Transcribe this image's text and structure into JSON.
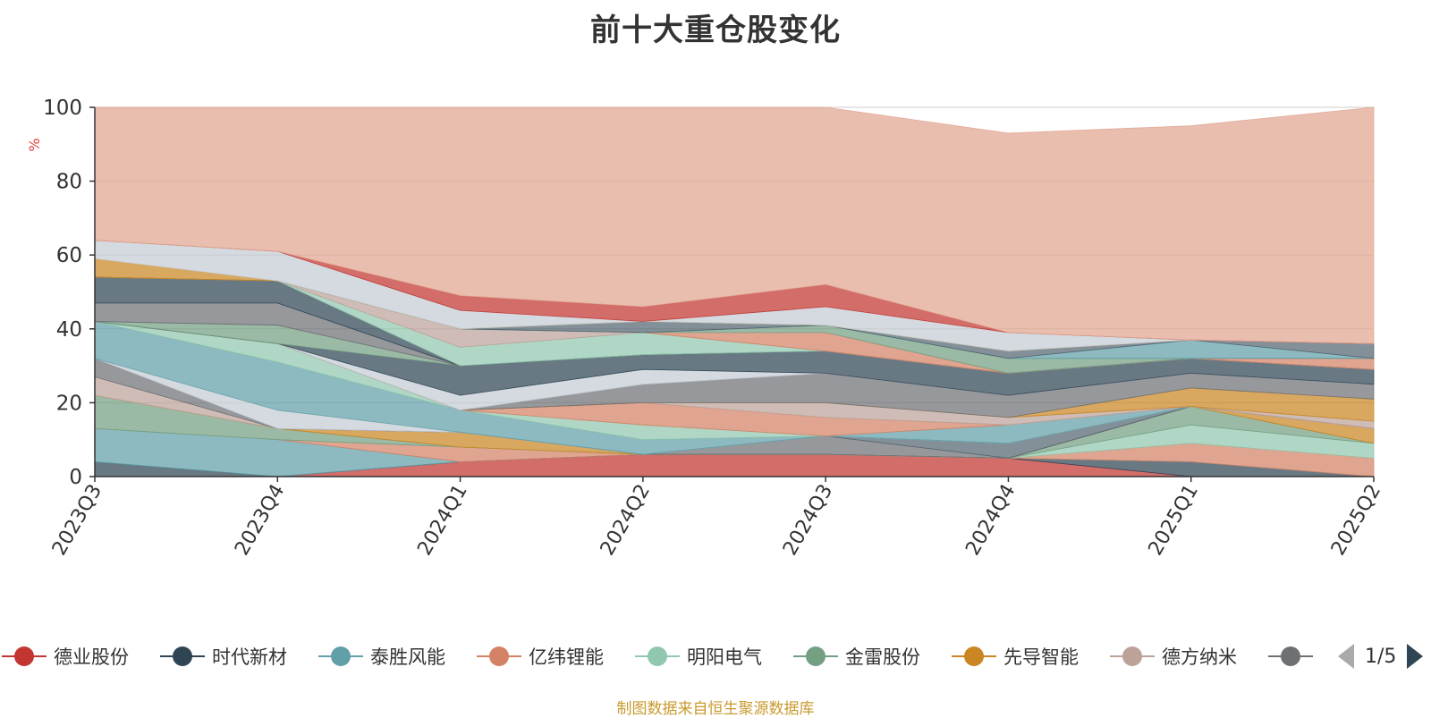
{
  "chart_data": {
    "type": "area",
    "stacked": true,
    "title": "前十大重仓股变化",
    "ylabel": "%",
    "ylim": [
      0,
      100
    ],
    "yticks": [
      0,
      20,
      40,
      60,
      80,
      100
    ],
    "categories": [
      "2023Q3",
      "2023Q4",
      "2024Q1",
      "2024Q2",
      "2024Q3",
      "2024Q4",
      "2025Q1",
      "2025Q2"
    ],
    "series": [
      {
        "name": "德业股份",
        "color": "#c23531",
        "values": [
          0,
          0,
          4,
          6,
          6,
          5,
          0,
          0
        ]
      },
      {
        "name": "时代新材",
        "color": "#2f4554",
        "values": [
          4,
          0,
          0,
          0,
          0,
          0,
          4,
          0
        ]
      },
      {
        "name": "泰胜风能",
        "color": "#61a0a8",
        "values": [
          9,
          10,
          0,
          0,
          0,
          0,
          0,
          0
        ]
      },
      {
        "name": "亿纬锂能",
        "color": "#d48265",
        "values": [
          0,
          0,
          4,
          0,
          0,
          0,
          5,
          5
        ]
      },
      {
        "name": "明阳电气",
        "color": "#91c7ae",
        "values": [
          0,
          0,
          0,
          0,
          0,
          0,
          5,
          4
        ]
      },
      {
        "name": "金雷股份",
        "color": "#749f83",
        "values": [
          9,
          3,
          0,
          0,
          0,
          0,
          5,
          0
        ]
      },
      {
        "name": "先导智能",
        "color": "#ca8622",
        "values": [
          0,
          0,
          4,
          0,
          0,
          0,
          0,
          4
        ]
      },
      {
        "name": "德方纳米",
        "color": "#bda29a",
        "values": [
          5,
          0,
          0,
          0,
          0,
          0,
          0,
          0
        ]
      },
      {
        "name": "",
        "color": "#6e7074",
        "values": [
          5,
          0,
          0,
          0,
          5,
          0,
          0,
          0
        ]
      },
      {
        "name": "",
        "color": "#546570",
        "values": [
          0,
          0,
          0,
          0,
          0,
          4,
          0,
          0
        ]
      },
      {
        "name": "",
        "color": "#c4ccd3",
        "values": [
          0,
          5,
          0,
          0,
          0,
          0,
          0,
          0
        ]
      },
      {
        "name": "",
        "color": "#61a0a8",
        "values": [
          10,
          13,
          6,
          4,
          0,
          5,
          0,
          0
        ]
      },
      {
        "name": "",
        "color": "#91c7ae",
        "values": [
          0,
          5,
          0,
          4,
          0,
          0,
          0,
          0
        ]
      },
      {
        "name": "",
        "color": "#d48265",
        "values": [
          0,
          0,
          0,
          6,
          5,
          0,
          0,
          0
        ]
      },
      {
        "name": "",
        "color": "#bda29a",
        "values": [
          0,
          0,
          0,
          0,
          4,
          2,
          0,
          2
        ]
      },
      {
        "name": "",
        "color": "#ca8622",
        "values": [
          0,
          0,
          0,
          0,
          0,
          0,
          5,
          6
        ]
      },
      {
        "name": "",
        "color": "#6e7074",
        "values": [
          0,
          0,
          0,
          5,
          8,
          6,
          4,
          4
        ]
      },
      {
        "name": "",
        "color": "#c4ccd3",
        "values": [
          0,
          0,
          4,
          4,
          0,
          0,
          0,
          0
        ]
      },
      {
        "name": "",
        "color": "#2f4554",
        "values": [
          0,
          0,
          8,
          4,
          6,
          6,
          4,
          4
        ]
      },
      {
        "name": "",
        "color": "#749f83",
        "values": [
          0,
          5,
          0,
          0,
          0,
          0,
          0,
          0
        ]
      },
      {
        "name": "",
        "color": "#6e7074",
        "values": [
          5,
          6,
          0,
          0,
          0,
          0,
          0,
          0
        ]
      },
      {
        "name": "",
        "color": "#2f4554",
        "values": [
          7,
          6,
          0,
          0,
          0,
          0,
          0,
          0
        ]
      },
      {
        "name": "",
        "color": "#91c7ae",
        "values": [
          0,
          0,
          5,
          6,
          0,
          0,
          0,
          0
        ]
      },
      {
        "name": "",
        "color": "#bda29a",
        "values": [
          0,
          0,
          5,
          0,
          0,
          0,
          0,
          0
        ]
      },
      {
        "name": "",
        "color": "#d48265",
        "values": [
          0,
          0,
          0,
          0,
          5,
          0,
          0,
          3
        ]
      },
      {
        "name": "",
        "color": "#749f83",
        "values": [
          0,
          0,
          0,
          0,
          2,
          4,
          0,
          0
        ]
      },
      {
        "name": "",
        "color": "#61a0a8",
        "values": [
          0,
          0,
          0,
          0,
          0,
          0,
          5,
          0
        ]
      },
      {
        "name": "",
        "color": "#546570",
        "values": [
          0,
          0,
          0,
          3,
          0,
          2,
          0,
          4
        ]
      },
      {
        "name": "",
        "color": "#ca8622",
        "values": [
          5,
          0,
          0,
          0,
          0,
          0,
          0,
          0
        ]
      },
      {
        "name": "",
        "color": "#c4ccd3",
        "values": [
          5,
          8,
          5,
          0,
          5,
          5,
          0,
          0
        ]
      },
      {
        "name": "",
        "color": "#c23531",
        "values": [
          0,
          0,
          4,
          4,
          6,
          0,
          0,
          0
        ]
      },
      {
        "name": "",
        "color": "#e0a590",
        "values": [
          36,
          39,
          51,
          54,
          48,
          54,
          58,
          64
        ]
      }
    ]
  },
  "legend": {
    "items": [
      {
        "name": "德业股份",
        "color": "#c23531"
      },
      {
        "name": "时代新材",
        "color": "#2f4554"
      },
      {
        "name": "泰胜风能",
        "color": "#61a0a8"
      },
      {
        "name": "亿纬锂能",
        "color": "#d48265"
      },
      {
        "name": "明阳电气",
        "color": "#91c7ae"
      },
      {
        "name": "金雷股份",
        "color": "#749f83"
      },
      {
        "name": "先导智能",
        "color": "#ca8622"
      },
      {
        "name": "德方纳米",
        "color": "#bda29a"
      },
      {
        "name": "",
        "color": "#6e7074"
      }
    ],
    "pager": "1/5"
  },
  "footer": "制图数据来自恒生聚源数据库"
}
